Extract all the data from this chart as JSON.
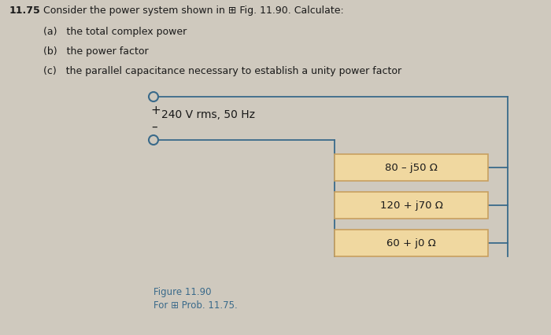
{
  "title_num": "11.75",
  "title_text": "Consider the power system shown in ⊞ Fig. 11.90. Calculate:",
  "items": [
    "(a)   the total complex power",
    "(b)   the power factor",
    "(c)   the parallel capacitance necessary to establish a unity power factor"
  ],
  "voltage_label": "240 V rms, 50 Hz",
  "impedances": [
    "80 – j50 Ω",
    "120 + j70 Ω",
    "60 + j0 Ω"
  ],
  "figure_label": "Figure 11.90",
  "prob_label": "For ⊞ Prob. 11.75.",
  "bg_color": "#cfc9be",
  "box_fill_color": "#f0d8a0",
  "box_edge_color": "#c8a060",
  "circuit_line_color": "#3a6a8a",
  "text_color": "#1a1a1a",
  "title_bold_color": "#1a1a1a",
  "fig_label_color": "#3a6a8a",
  "lw": 1.3
}
